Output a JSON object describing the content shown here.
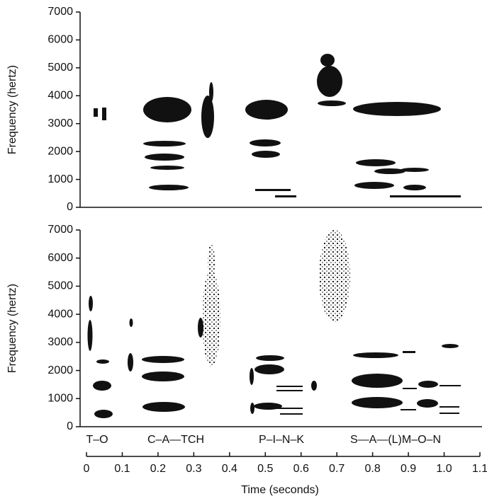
{
  "chart_data": [
    {
      "type": "spectrogram",
      "y_label": "Frequency (hertz)",
      "ylim": [
        0,
        7000
      ],
      "yticks": [
        0,
        1000,
        2000,
        3000,
        4000,
        5000,
        6000,
        7000
      ]
    },
    {
      "type": "spectrogram",
      "y_label": "Frequency (hertz)",
      "ylim": [
        0,
        7000
      ],
      "yticks": [
        0,
        1000,
        2000,
        3000,
        4000,
        5000,
        6000,
        7000
      ],
      "x_label": "Time (seconds)",
      "xlim": [
        0,
        1.1
      ],
      "xticks": [
        0,
        0.1,
        0.2,
        0.3,
        0.4,
        0.5,
        0.6,
        0.7,
        0.8,
        0.9,
        {
          "value": 1,
          "label": "1.0"
        },
        1.1
      ],
      "words": [
        "T–O",
        "C–A—TCH",
        "P–I–N–K",
        "S—A—(L)M–O–N"
      ]
    }
  ]
}
